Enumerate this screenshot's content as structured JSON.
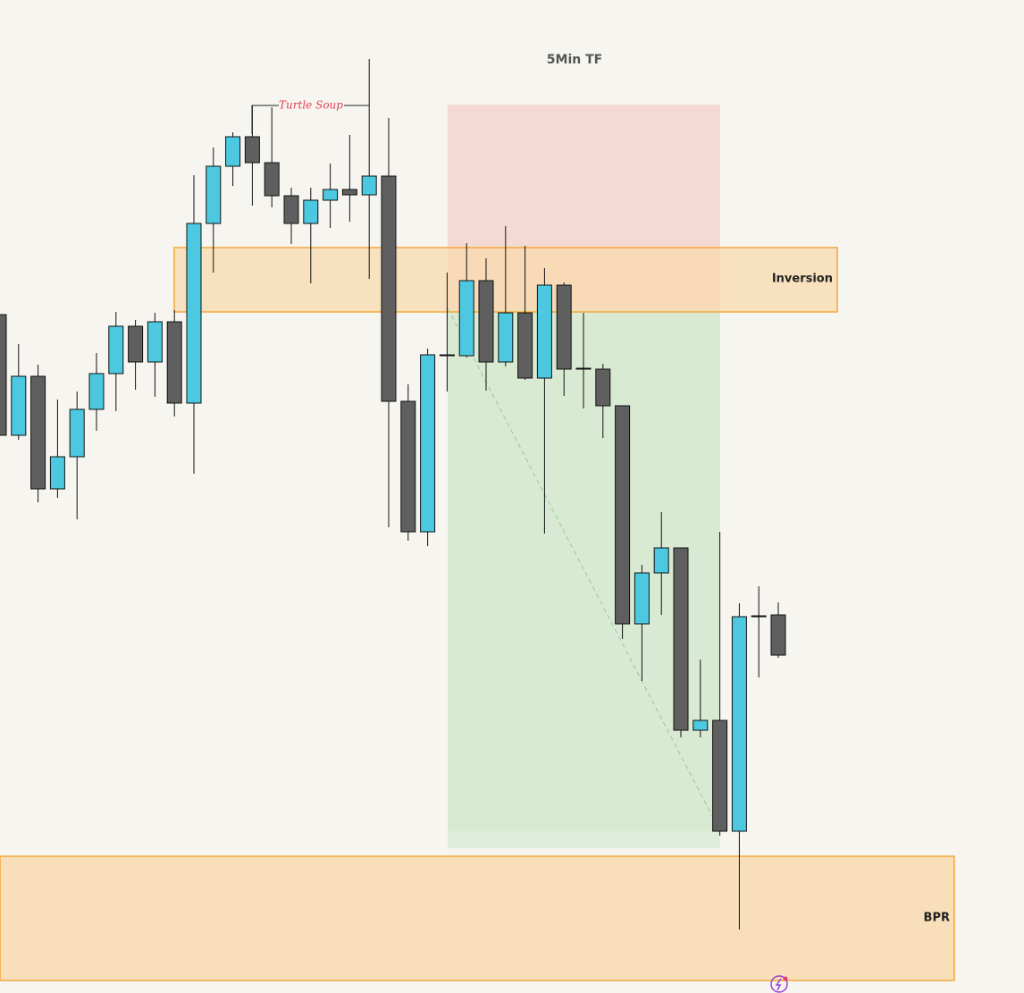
{
  "chart_data": {
    "type": "candlestick",
    "title": "5Min TF",
    "annotations": {
      "turtle_soup": "Turtle Soup",
      "inversion": "Inversion",
      "bpr": "BPR"
    },
    "open": [
      759,
      624,
      690,
      564,
      600,
      653,
      693,
      746,
      706,
      751,
      660,
      861,
      925,
      958,
      929,
      892,
      861,
      887,
      899,
      893,
      914,
      662,
      516,
      714,
      713,
      797,
      706,
      761,
      688,
      792,
      698,
      698,
      657,
      413,
      470,
      498,
      294,
      305,
      181,
      421,
      423
    ],
    "high": [
      759,
      726,
      703,
      664,
      673,
      716,
      762,
      753,
      761,
      764,
      915,
      946,
      963,
      993,
      991,
      901,
      901,
      928,
      960,
      1045,
      979,
      681,
      721,
      806,
      839,
      822,
      858,
      836,
      811,
      795,
      761,
      704,
      657,
      479,
      538,
      498,
      373,
      516,
      436,
      455,
      437
    ],
    "low": [
      620,
      619,
      549,
      554,
      530,
      629,
      651,
      675,
      667,
      645,
      581,
      806,
      903,
      881,
      879,
      838,
      794,
      856,
      863,
      799,
      521,
      506,
      500,
      673,
      711,
      674,
      701,
      686,
      514,
      668,
      654,
      621,
      396,
      349,
      423,
      286,
      286,
      176,
      71,
      353,
      375
    ],
    "close": [
      624,
      690,
      564,
      600,
      653,
      693,
      746,
      706,
      751,
      660,
      861,
      925,
      958,
      929,
      892,
      861,
      887,
      899,
      893,
      914,
      662,
      516,
      714,
      713,
      797,
      706,
      761,
      688,
      792,
      698,
      699,
      657,
      413,
      470,
      498,
      294,
      305,
      181,
      421,
      422,
      378
    ],
    "up_color": "#4cc9e0",
    "down_color": "#5f5f5f",
    "ylim": [
      0,
      1111
    ]
  }
}
